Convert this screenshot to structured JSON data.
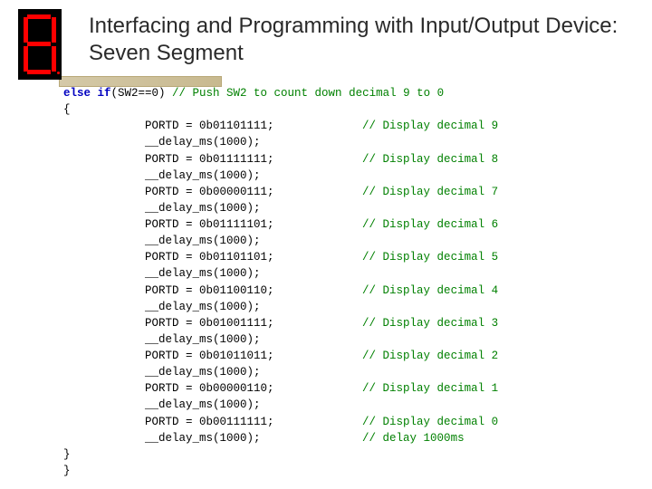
{
  "title": "Interfacing and Programming with Input/Output Device: Seven Segment",
  "code": {
    "kw_elseif": "else if",
    "cond": "(SW2==0)",
    "cond_comment": " // Push SW2 to count down decimal 9 to 0",
    "brace_open": "{",
    "brace_close1": "}",
    "brace_close2": "}",
    "delay_line": "__delay_ms(1000);",
    "final_comment": "// delay 1000ms",
    "lines": [
      {
        "assign": "PORTD = 0b01101111;",
        "comment": "// Display decimal 9"
      },
      {
        "assign": "PORTD = 0b01111111;",
        "comment": "// Display decimal 8"
      },
      {
        "assign": "PORTD = 0b00000111;",
        "comment": "// Display decimal 7"
      },
      {
        "assign": "PORTD = 0b01111101;",
        "comment": "// Display decimal 6"
      },
      {
        "assign": "PORTD = 0b01101101;",
        "comment": "// Display decimal 5"
      },
      {
        "assign": "PORTD = 0b01100110;",
        "comment": "// Display decimal 4"
      },
      {
        "assign": "PORTD = 0b01001111;",
        "comment": "// Display decimal 3"
      },
      {
        "assign": "PORTD = 0b01011011;",
        "comment": "// Display decimal 2"
      },
      {
        "assign": "PORTD = 0b00000110;",
        "comment": "// Display decimal 1"
      },
      {
        "assign": "PORTD = 0b00111111;",
        "comment": "// Display decimal 0"
      }
    ]
  },
  "style": {
    "body_bg": "#ffffff",
    "title_color": "#2a2a2a",
    "title_fontsize": 24,
    "code_fontsize": 12.5,
    "code_font": "Courier New",
    "keyword_color": "#0000c0",
    "comment_color": "#008000",
    "segment_bg": "#000000",
    "segment_on": "#ff0000",
    "band_gradient_from": "#d4c9a8",
    "band_gradient_to": "#c8b98f",
    "band_border": "#b8a878"
  }
}
